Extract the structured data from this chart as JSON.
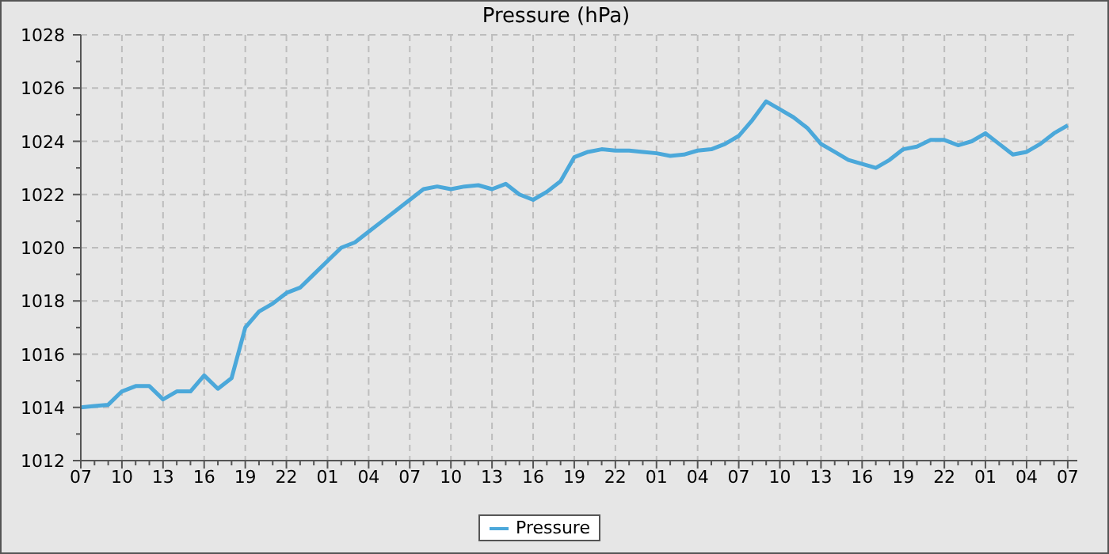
{
  "chart_data": {
    "type": "line",
    "title": "Pressure (hPa)",
    "categories": [
      "07",
      null,
      null,
      "10",
      null,
      null,
      "13",
      null,
      null,
      "16",
      null,
      null,
      "19",
      null,
      null,
      "22",
      null,
      null,
      "01",
      null,
      null,
      "04",
      null,
      null,
      "07",
      null,
      null,
      "10",
      null,
      null,
      "13",
      null,
      null,
      "16",
      null,
      null,
      "19",
      null,
      null,
      "22",
      null,
      null,
      "01",
      null,
      null,
      "04",
      null,
      null,
      "07",
      null,
      null,
      "10",
      null,
      null,
      "13",
      null,
      null,
      "16",
      null,
      null,
      "19",
      null,
      null,
      "22",
      null,
      null,
      "01",
      null,
      null,
      "04",
      null,
      null,
      "07"
    ],
    "series": [
      {
        "name": "Pressure",
        "color": "#4ba8da",
        "values": [
          1014.0,
          1014.05,
          1014.1,
          1014.6,
          1014.8,
          1014.8,
          1014.3,
          1014.6,
          1014.6,
          1015.2,
          1014.7,
          1015.1,
          1017.0,
          1017.6,
          1017.9,
          1018.3,
          1018.5,
          1019.0,
          1019.5,
          1020.0,
          1020.2,
          1020.6,
          1021.0,
          1021.4,
          1021.8,
          1022.2,
          1022.3,
          1022.2,
          1022.3,
          1022.35,
          1022.2,
          1022.4,
          1022.0,
          1021.8,
          1022.1,
          1022.5,
          1023.4,
          1023.6,
          1023.7,
          1023.65,
          1023.65,
          1023.6,
          1023.55,
          1023.45,
          1023.5,
          1023.65,
          1023.7,
          1023.9,
          1024.2,
          1024.8,
          1025.5,
          1025.2,
          1024.9,
          1024.5,
          1023.9,
          1023.6,
          1023.3,
          1023.15,
          1023.0,
          1023.3,
          1023.7,
          1023.8,
          1024.05,
          1024.05,
          1023.85,
          1024.0,
          1024.3,
          1023.9,
          1023.5,
          1023.6,
          1023.9,
          1024.3,
          1024.6
        ]
      }
    ],
    "ylim": [
      1012,
      1028
    ],
    "yticks": [
      1012,
      {
        "value": 1013,
        "label": null
      },
      1014,
      {
        "value": 1015,
        "label": null
      },
      1016,
      {
        "value": 1017,
        "label": null
      },
      1018,
      {
        "value": 1019,
        "label": null
      },
      1020,
      {
        "value": 1021,
        "label": null
      },
      1022,
      {
        "value": 1023,
        "label": null
      },
      1024,
      {
        "value": 1025,
        "label": null
      },
      1026,
      {
        "value": 1027,
        "label": null
      },
      1028
    ],
    "grid": true,
    "legend": "bottom",
    "marker": "none",
    "line_style": "solid"
  }
}
